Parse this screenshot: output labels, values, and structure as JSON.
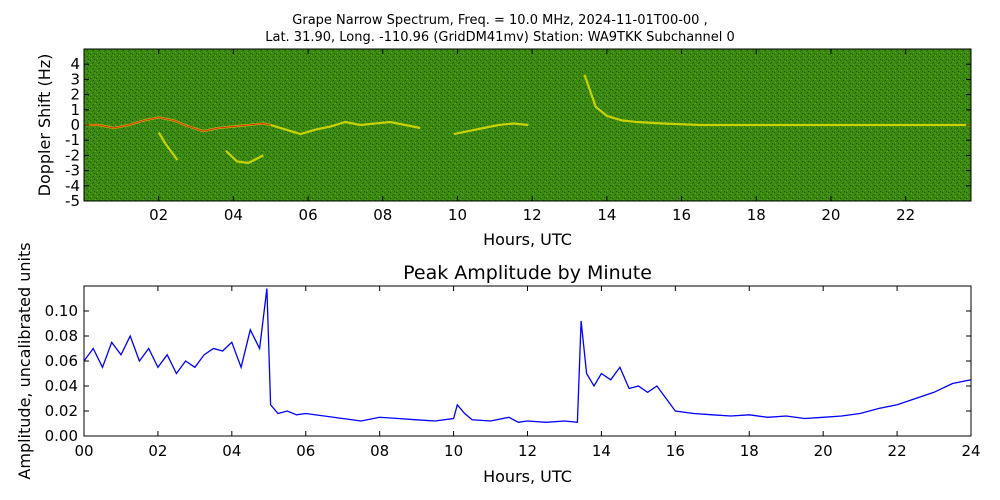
{
  "figure": {
    "title_line1": "Grape Narrow Spectrum, Freq. = 10.0 MHz, 2024-11-01T00-00 ,",
    "title_line2": "Lat.  31.90, Long. -110.96 (GridDM41mv) Station: WA9TKK Subchannel 0"
  },
  "chart_data": [
    {
      "type": "heatmap",
      "title": "",
      "xlabel": "Hours, UTC",
      "ylabel": "Doppler Shift (Hz)",
      "xlim": [
        0,
        23.75
      ],
      "ylim": [
        -5,
        5
      ],
      "x_ticks": [
        2,
        4,
        6,
        8,
        10,
        12,
        14,
        16,
        18,
        20,
        22
      ],
      "x_tick_labels": [
        "02",
        "04",
        "06",
        "08",
        "10",
        "12",
        "14",
        "16",
        "18",
        "20",
        "22"
      ],
      "y_ticks": [
        4,
        3,
        2,
        1,
        0,
        -1,
        -2,
        -3,
        -4,
        -5
      ],
      "y_tick_labels": [
        "4",
        "3",
        "2",
        "1",
        "0",
        "-1",
        "-2",
        "-3",
        "-4",
        "-5"
      ],
      "colors": {
        "background": "#3d8a10",
        "noise": "#1a5a08",
        "trace": "#e0e000",
        "peak": "#e01010"
      },
      "traces": [
        {
          "x": [
            0.0,
            0.4,
            0.8,
            1.2,
            1.6,
            2.0,
            2.4,
            2.8,
            3.2,
            3.6,
            4.0,
            4.4,
            4.8,
            5.0
          ],
          "y": [
            0.0,
            0.0,
            -0.2,
            0.0,
            0.3,
            0.5,
            0.3,
            -0.1,
            -0.4,
            -0.2,
            -0.1,
            0.0,
            0.1,
            0.0
          ]
        },
        {
          "x": [
            5.0,
            5.4,
            5.8,
            6.2,
            6.6,
            7.0,
            7.4,
            7.8,
            8.2,
            8.6,
            9.0
          ],
          "y": [
            0.0,
            -0.3,
            -0.6,
            -0.3,
            -0.1,
            0.2,
            0.0,
            0.1,
            0.2,
            0.0,
            -0.2
          ]
        },
        {
          "x": [
            9.9,
            10.3,
            10.7,
            11.1,
            11.5,
            11.9
          ],
          "y": [
            -0.6,
            -0.4,
            -0.2,
            0.0,
            0.1,
            0.0
          ]
        },
        {
          "x": [
            13.4,
            13.7,
            14.0,
            14.4,
            14.8,
            15.5,
            16.5,
            18.0,
            20.0,
            22.0,
            23.75
          ],
          "y": [
            3.3,
            1.2,
            0.6,
            0.3,
            0.2,
            0.1,
            0.0,
            0.0,
            0.0,
            0.0,
            0.0
          ]
        },
        {
          "x": [
            2.0,
            2.2,
            2.5
          ],
          "y": [
            -0.5,
            -1.3,
            -2.3
          ]
        },
        {
          "x": [
            3.8,
            4.1,
            4.4,
            4.8
          ],
          "y": [
            -1.7,
            -2.4,
            -2.5,
            -2.0
          ]
        }
      ]
    },
    {
      "type": "line",
      "title": "Peak Amplitude by Minute",
      "xlabel": "Hours, UTC",
      "ylabel": "Amplitude, uncalibrated units",
      "xlim": [
        0,
        24
      ],
      "ylim": [
        0,
        0.12
      ],
      "x_ticks": [
        0,
        2,
        4,
        6,
        8,
        10,
        12,
        14,
        16,
        18,
        20,
        22,
        24
      ],
      "x_tick_labels": [
        "00",
        "02",
        "04",
        "06",
        "08",
        "10",
        "12",
        "14",
        "16",
        "18",
        "20",
        "22",
        "24"
      ],
      "y_ticks": [
        0.0,
        0.02,
        0.04,
        0.06,
        0.08,
        0.1
      ],
      "y_tick_labels": [
        "0.00",
        "0.02",
        "0.04",
        "0.06",
        "0.08",
        "0.10"
      ],
      "color": "#0000ff",
      "series": [
        {
          "x": [
            0.0,
            0.25,
            0.5,
            0.75,
            1.0,
            1.25,
            1.5,
            1.75,
            2.0,
            2.25,
            2.5,
            2.75,
            3.0,
            3.25,
            3.5,
            3.75,
            4.0,
            4.25,
            4.5,
            4.75,
            4.95,
            5.05,
            5.25,
            5.5,
            5.75,
            6.0,
            6.5,
            7.0,
            7.5,
            8.0,
            8.5,
            9.0,
            9.5,
            10.0,
            10.1,
            10.3,
            10.5,
            11.0,
            11.5,
            11.75,
            12.0,
            12.5,
            13.0,
            13.35,
            13.45,
            13.6,
            13.8,
            14.0,
            14.25,
            14.5,
            14.75,
            15.0,
            15.25,
            15.5,
            15.75,
            16.0,
            16.5,
            17.0,
            17.5,
            18.0,
            18.5,
            19.0,
            19.5,
            20.0,
            20.5,
            21.0,
            21.5,
            22.0,
            22.5,
            23.0,
            23.5,
            24.0
          ],
          "y": [
            0.06,
            0.07,
            0.055,
            0.075,
            0.065,
            0.08,
            0.06,
            0.07,
            0.055,
            0.065,
            0.05,
            0.06,
            0.055,
            0.065,
            0.07,
            0.068,
            0.075,
            0.055,
            0.085,
            0.07,
            0.118,
            0.025,
            0.018,
            0.02,
            0.017,
            0.018,
            0.016,
            0.014,
            0.012,
            0.015,
            0.014,
            0.013,
            0.012,
            0.014,
            0.025,
            0.018,
            0.013,
            0.012,
            0.015,
            0.011,
            0.012,
            0.011,
            0.012,
            0.011,
            0.092,
            0.05,
            0.04,
            0.05,
            0.045,
            0.055,
            0.038,
            0.04,
            0.035,
            0.04,
            0.03,
            0.02,
            0.018,
            0.017,
            0.016,
            0.017,
            0.015,
            0.016,
            0.014,
            0.015,
            0.016,
            0.018,
            0.022,
            0.025,
            0.03,
            0.035,
            0.042,
            0.045
          ]
        }
      ]
    }
  ]
}
